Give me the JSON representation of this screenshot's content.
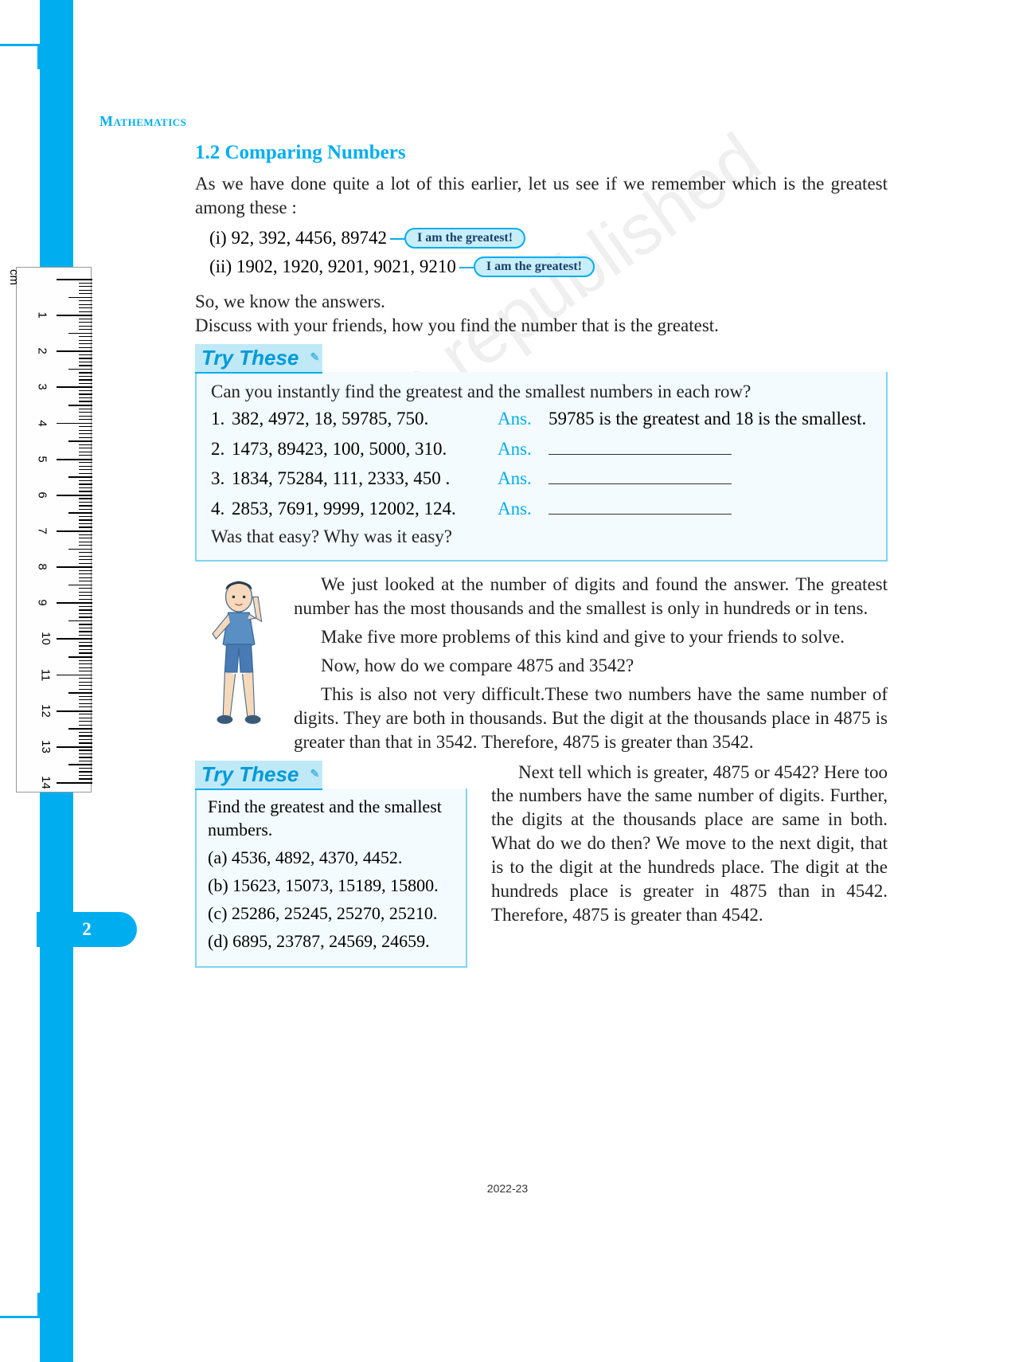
{
  "subject": "Mathematics",
  "section": {
    "number": "1.2",
    "title": "Comparing Numbers"
  },
  "intro": "As we have done quite a lot of this earlier, let us see if we remember which is the greatest among these :",
  "examples": [
    {
      "label": "(i)",
      "numbers": "92, 392, 4456, 89742",
      "callout": "I am the greatest!"
    },
    {
      "label": "(ii)",
      "numbers": "1902, 1920, 9201, 9021, 9210",
      "callout": "I am the greatest!"
    }
  ],
  "bridge1": "So, we know the answers.",
  "bridge2": "Discuss with your friends, how you find the number that is the greatest.",
  "try1": {
    "banner": "Try These",
    "prompt": "Can you instantly find the greatest and the smallest numbers in each row?",
    "rows": [
      {
        "n": "1.",
        "q": "382, 4972, 18, 59785, 750.",
        "ansLabel": "Ans.",
        "ans": "59785 is the greatest and 18 is the smallest."
      },
      {
        "n": "2.",
        "q": "1473, 89423, 100, 5000, 310.",
        "ansLabel": "Ans.",
        "ans": ""
      },
      {
        "n": "3.",
        "q": "1834, 75284, 111, 2333, 450 .",
        "ansLabel": "Ans.",
        "ans": ""
      },
      {
        "n": "4.",
        "q": "2853, 7691, 9999, 12002, 124.",
        "ansLabel": "Ans.",
        "ans": ""
      }
    ],
    "footer": "Was that easy? Why was it easy?"
  },
  "para2a": "We just looked at the number of digits and found the answer. The greatest number has the most thousands and the smallest is only in hundreds or in tens.",
  "para2b": "Make five more problems of this kind and give to your friends to solve.",
  "para2c": "Now, how do we compare 4875 and 3542?",
  "para2d": "This is also not very difficult.These two numbers have the same number of digits. They are both in thousands. But the digit at the thousands place in 4875 is greater than that in 3542. Therefore, 4875 is greater than 3542.",
  "try2": {
    "banner": "Try These",
    "prompt": "Find the greatest and the smallest numbers.",
    "items": [
      "(a) 4536, 4892, 4370, 4452.",
      "(b) 15623, 15073, 15189, 15800.",
      "(c) 25286, 25245, 25270, 25210.",
      "(d) 6895, 23787, 24569, 24659."
    ]
  },
  "para3": "Next tell which is greater, 4875 or 4542? Here too the numbers have the same number of digits. Further, the digits at the thousands place are same in both. What do we do then? We move to the next digit, that is to the digit at the hundreds place. The digit at the hundreds place is greater in 4875 than in 4542. Therefore, 4875 is greater than 4542.",
  "pageNumber": "2",
  "footerYear": "2022-23",
  "ruler": {
    "unit": "cm",
    "max": 14
  },
  "colors": {
    "accent": "#00aef0",
    "bannerBg": "#bfe9f7",
    "boxBorder": "#7fd4f0",
    "boxBg": "#f3fbfe",
    "bubbleBg": "#c8eef9"
  }
}
